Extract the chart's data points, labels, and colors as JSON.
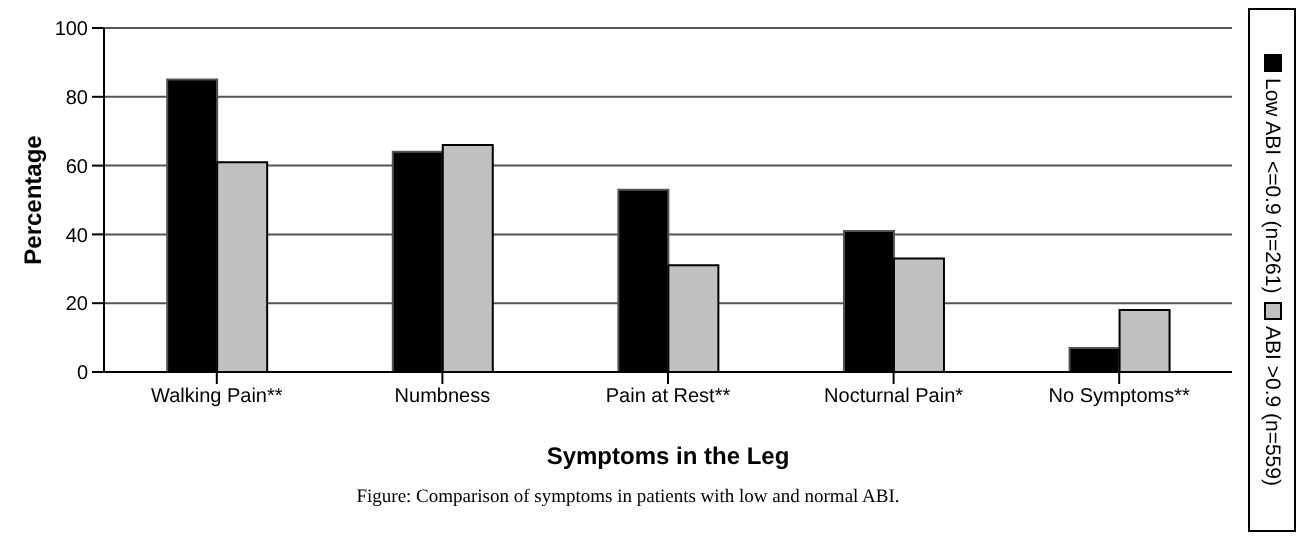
{
  "chart_data": {
    "type": "bar",
    "xlabel": "Symptoms in the Leg",
    "ylabel": "Percentage",
    "categories": [
      "Walking Pain**",
      "Numbness",
      "Pain at Rest**",
      "Nocturnal Pain*",
      "No Symptoms**"
    ],
    "series": [
      {
        "name": "Low ABI <=0.9 (n=261)",
        "color": "#000000",
        "values": [
          85,
          64,
          53,
          41,
          7
        ]
      },
      {
        "name": "ABI >0.9 (n=559)",
        "color": "#c0c0c0",
        "values": [
          61,
          66,
          31,
          33,
          18
        ]
      }
    ],
    "ylim": [
      0,
      100
    ],
    "yticks": [
      0,
      20,
      40,
      60,
      80,
      100
    ],
    "grid": "y",
    "legend": "right",
    "annotations": [
      "Figure: Comparison of symptoms in patients with low and normal ABI."
    ]
  }
}
